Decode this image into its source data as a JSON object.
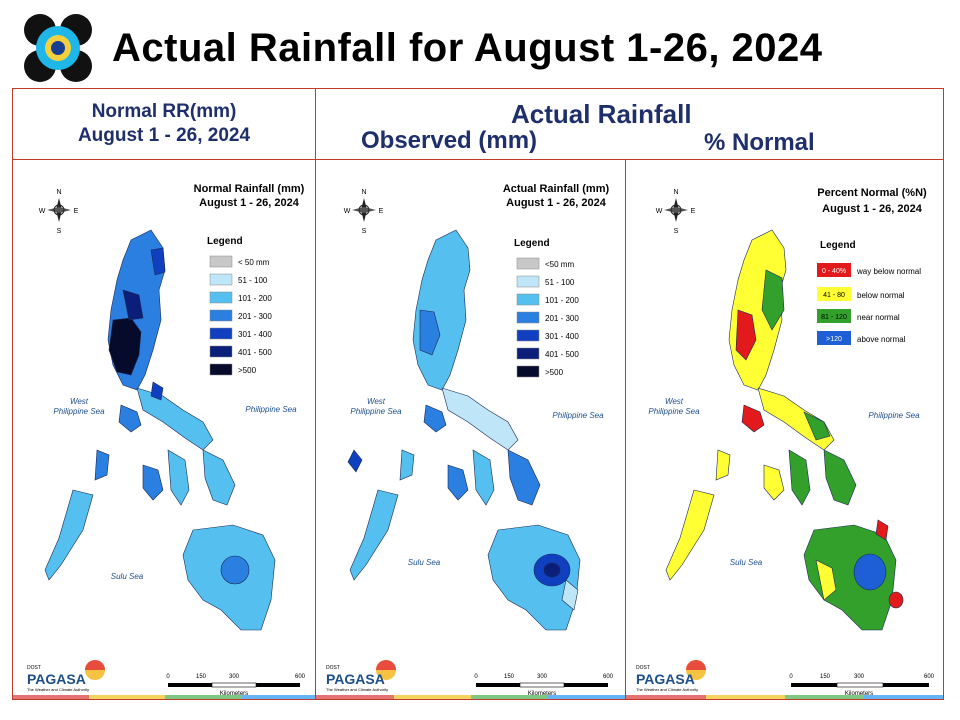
{
  "slide": {
    "title": "Actual Rainfall for August 1-26, 2024"
  },
  "headers": {
    "normal_line1": "Normal RR(mm)",
    "normal_line2": "August 1 - 26, 2024",
    "actual_title": "Actual Rainfall",
    "observed": "Observed (mm)",
    "percent": "% Normal"
  },
  "compass": {
    "n": "N",
    "s": "S",
    "e": "E",
    "w": "W"
  },
  "seas": {
    "west_line1": "West",
    "west_line2": "Philippine Sea",
    "east": "Philippine Sea",
    "sulu": "Sulu Sea"
  },
  "scale": {
    "t0": "0",
    "t1": "150",
    "t2": "300",
    "t3": "600",
    "unit": "Kilometers"
  },
  "logo": {
    "small": "DOST",
    "name": "PAGASA",
    "tagline": "The Weather and Climate Authority"
  },
  "maps": [
    {
      "title1": "Normal Rainfall (mm)",
      "title2": "August 1 - 26, 2024",
      "legend_title": "Legend",
      "legend": [
        {
          "label": "< 50 mm",
          "color": "#c8c8c8"
        },
        {
          "label": "51 - 100",
          "color": "#bfe6f8"
        },
        {
          "label": "101 - 200",
          "color": "#55bff0"
        },
        {
          "label": "201 - 300",
          "color": "#2a7fe0"
        },
        {
          "label": "301 - 400",
          "color": "#1040c0"
        },
        {
          "label": "401 - 500",
          "color": "#0b1f7a"
        },
        {
          "label": ">500",
          "color": "#070b2b"
        }
      ]
    },
    {
      "title1": "Actual Rainfall (mm)",
      "title2": "August 1 - 26, 2024",
      "legend_title": "Legend",
      "legend": [
        {
          "label": "<50 mm",
          "color": "#c8c8c8"
        },
        {
          "label": "51 - 100",
          "color": "#bfe6f8"
        },
        {
          "label": "101 - 200",
          "color": "#55bff0"
        },
        {
          "label": "201 - 300",
          "color": "#2a7fe0"
        },
        {
          "label": "301 - 400",
          "color": "#1040c0"
        },
        {
          "label": "401 - 500",
          "color": "#0b1f7a"
        },
        {
          "label": ">500",
          "color": "#070b2b"
        }
      ]
    },
    {
      "title1": "Percent Normal (%N)",
      "title2": "August 1 - 26, 2024",
      "legend_title": "Legend",
      "legend": [
        {
          "swatch": "0 - 40%",
          "label": "way below normal",
          "color": "#e31a1c",
          "text_color": "#ffffff"
        },
        {
          "swatch": "41 - 80",
          "label": "below normal",
          "color": "#ffff33",
          "text_color": "#000000"
        },
        {
          "swatch": "81 - 120",
          "label": "near normal",
          "color": "#33a02c",
          "text_color": "#000000"
        },
        {
          "swatch": ">120",
          "label": "above normal",
          "color": "#1f5fd6",
          "text_color": "#ffffff"
        }
      ]
    }
  ]
}
